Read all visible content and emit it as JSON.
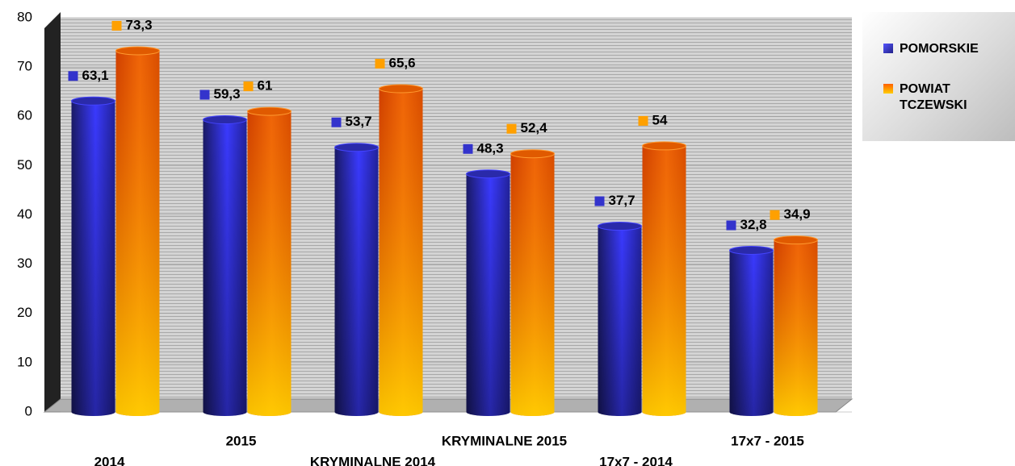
{
  "chart_data": {
    "type": "bar",
    "categories": [
      "2014",
      "2015",
      "KRYMINALNE 2014",
      "KRYMINALNE 2015",
      "17x7 - 2014",
      "17x7 - 2015"
    ],
    "series": [
      {
        "name": "POMORSKIE",
        "color": "#3333cc",
        "values": [
          63.1,
          59.3,
          53.7,
          48.3,
          37.7,
          32.8
        ],
        "value_labels": [
          "63,1",
          "59,3",
          "53,7",
          "48,3",
          "37,7",
          "32,8"
        ]
      },
      {
        "name": "POWIAT TCZEWSKI",
        "color": "#ff8000",
        "values": [
          73.3,
          61,
          65.6,
          52.4,
          54,
          34.9
        ],
        "value_labels": [
          "73,3",
          "61",
          "65,6",
          "52,4",
          "54",
          "34,9"
        ]
      }
    ],
    "ylim": [
      0,
      80
    ],
    "yticks": [
      0,
      10,
      20,
      30,
      40,
      50,
      60,
      70,
      80
    ],
    "grid": true,
    "legend": "right"
  }
}
